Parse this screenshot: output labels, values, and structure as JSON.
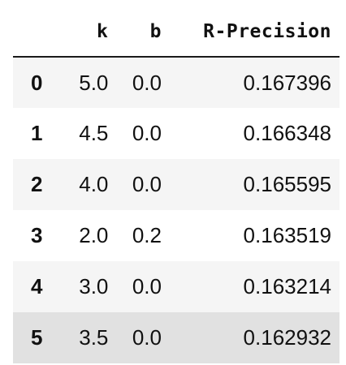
{
  "table": {
    "columns": [
      "",
      "k",
      "b",
      "R-Precision"
    ],
    "rows": [
      {
        "index": "0",
        "k": "5.0",
        "b": "0.0",
        "r_precision": "0.167396"
      },
      {
        "index": "1",
        "k": "4.5",
        "b": "0.0",
        "r_precision": "0.166348"
      },
      {
        "index": "2",
        "k": "4.0",
        "b": "0.0",
        "r_precision": "0.165595"
      },
      {
        "index": "3",
        "k": "2.0",
        "b": "0.2",
        "r_precision": "0.163519"
      },
      {
        "index": "4",
        "k": "3.0",
        "b": "0.0",
        "r_precision": "0.163214"
      },
      {
        "index": "5",
        "k": "3.5",
        "b": "0.0",
        "r_precision": "0.162932"
      }
    ],
    "hovered_row": 5
  }
}
